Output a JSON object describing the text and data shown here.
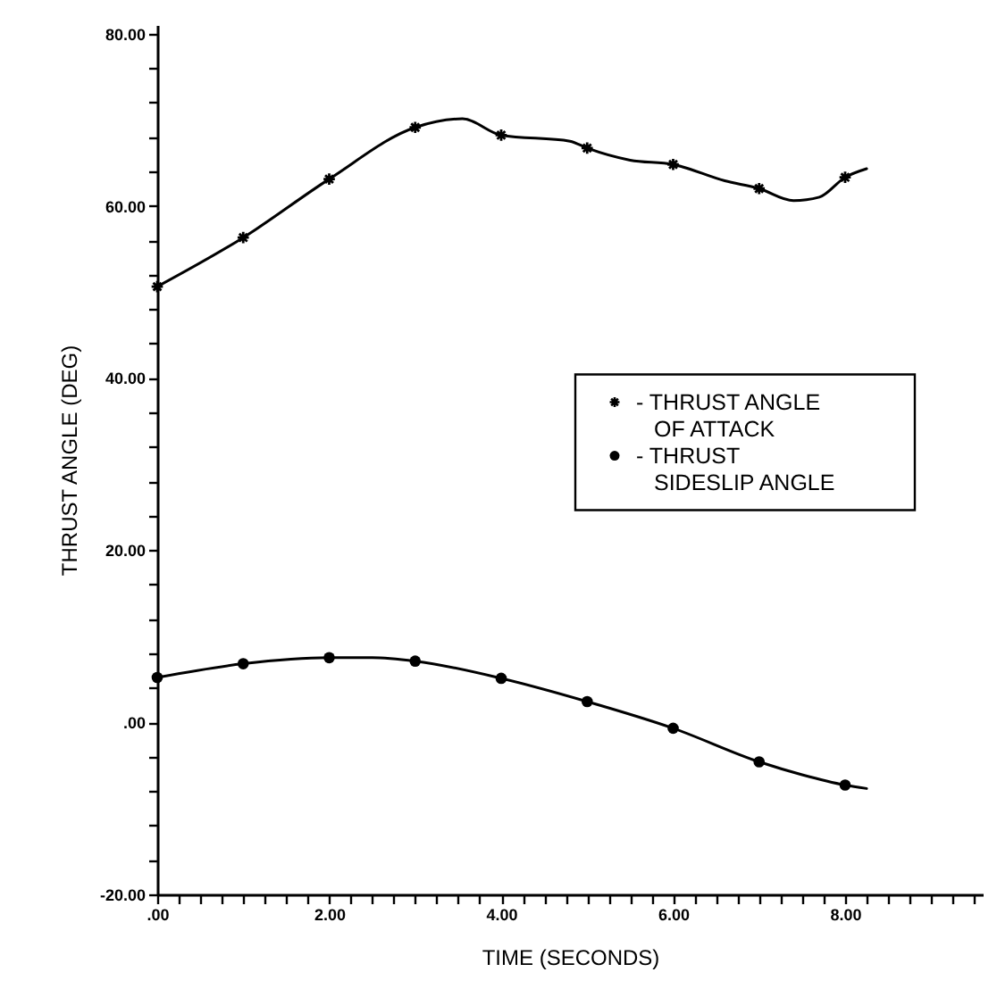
{
  "chart_data": {
    "type": "line",
    "xlabel": "TIME (SECONDS)",
    "ylabel": "THRUST ANGLE (DEG)",
    "xlim": [
      0,
      9.6
    ],
    "ylim": [
      -20,
      81
    ],
    "xticks": [
      {
        "value": 0,
        "label": ".00"
      },
      {
        "value": 0.25,
        "label": null
      },
      {
        "value": 0.5,
        "label": null
      },
      {
        "value": 0.75,
        "label": null
      },
      {
        "value": 1,
        "label": null
      },
      {
        "value": 1.25,
        "label": null
      },
      {
        "value": 1.5,
        "label": null
      },
      {
        "value": 1.75,
        "label": null
      },
      {
        "value": 2,
        "label": "2.00"
      },
      {
        "value": 2.25,
        "label": null
      },
      {
        "value": 2.5,
        "label": null
      },
      {
        "value": 2.75,
        "label": null
      },
      {
        "value": 3,
        "label": null
      },
      {
        "value": 3.25,
        "label": null
      },
      {
        "value": 3.5,
        "label": null
      },
      {
        "value": 3.75,
        "label": null
      },
      {
        "value": 4,
        "label": "4.00"
      },
      {
        "value": 4.25,
        "label": null
      },
      {
        "value": 4.5,
        "label": null
      },
      {
        "value": 4.75,
        "label": null
      },
      {
        "value": 5,
        "label": null
      },
      {
        "value": 5.25,
        "label": null
      },
      {
        "value": 5.5,
        "label": null
      },
      {
        "value": 5.75,
        "label": null
      },
      {
        "value": 6,
        "label": "6.00"
      },
      {
        "value": 6.25,
        "label": null
      },
      {
        "value": 6.5,
        "label": null
      },
      {
        "value": 6.75,
        "label": null
      },
      {
        "value": 7,
        "label": null
      },
      {
        "value": 7.25,
        "label": null
      },
      {
        "value": 7.5,
        "label": null
      },
      {
        "value": 7.75,
        "label": null
      },
      {
        "value": 8,
        "label": "8.00"
      },
      {
        "value": 8.25,
        "label": null
      },
      {
        "value": 8.5,
        "label": null
      },
      {
        "value": 8.75,
        "label": null
      },
      {
        "value": 9,
        "label": null
      },
      {
        "value": 9.25,
        "label": null
      },
      {
        "value": 9.5,
        "label": null
      }
    ],
    "yticks": [
      {
        "value": -20,
        "label": "-20.00"
      },
      {
        "value": -16,
        "label": null
      },
      {
        "value": -12,
        "label": null
      },
      {
        "value": -8,
        "label": null
      },
      {
        "value": -4,
        "label": null
      },
      {
        "value": 0,
        "label": ".00"
      },
      {
        "value": 4,
        "label": null
      },
      {
        "value": 8,
        "label": null
      },
      {
        "value": 12,
        "label": null
      },
      {
        "value": 16,
        "label": null
      },
      {
        "value": 20,
        "label": "20.00"
      },
      {
        "value": 24,
        "label": null
      },
      {
        "value": 28,
        "label": null
      },
      {
        "value": 32,
        "label": null
      },
      {
        "value": 36,
        "label": null
      },
      {
        "value": 40,
        "label": "40.00"
      },
      {
        "value": 44,
        "label": null
      },
      {
        "value": 48,
        "label": null
      },
      {
        "value": 52,
        "label": null
      },
      {
        "value": 56,
        "label": null
      },
      {
        "value": 60,
        "label": "60.00"
      },
      {
        "value": 64,
        "label": null
      },
      {
        "value": 68,
        "label": null
      },
      {
        "value": 72,
        "label": null
      },
      {
        "value": 76,
        "label": null
      },
      {
        "value": 80,
        "label": "80.00"
      }
    ],
    "grid": false,
    "legend": "right",
    "series": [
      {
        "color": "#000000",
        "marker": "none",
        "line_style": "solid",
        "x": [
          0,
          1,
          2,
          3,
          3.55,
          4,
          4.8,
          5,
          5.5,
          6,
          6.6,
          7,
          7.4,
          7.7,
          8,
          8.25
        ],
        "values": [
          50.6,
          56.3,
          63.1,
          69.1,
          70.1,
          68.2,
          67.5,
          66.7,
          65.3,
          64.8,
          62.9,
          62.0,
          60.6,
          61.0,
          63.3,
          64.3
        ]
      },
      {
        "type": "scatter",
        "name": "- THRUST ANGLE OF ATTACK",
        "color": "#000000",
        "marker": "cross",
        "x": [
          0,
          1,
          2,
          3,
          4,
          5,
          6,
          7,
          8
        ],
        "values": [
          50.6,
          56.3,
          63.1,
          69.1,
          68.2,
          66.7,
          64.8,
          62.0,
          63.3
        ]
      },
      {
        "color": "#000000",
        "marker": "none",
        "line_style": "solid",
        "x": [
          0,
          1,
          2,
          2.5,
          3,
          4,
          5,
          6,
          7,
          7.5,
          8,
          8.25
        ],
        "values": [
          5.2,
          6.8,
          7.5,
          7.5,
          7.1,
          5.1,
          2.4,
          -0.7,
          -4.6,
          -6.1,
          -7.3,
          -7.7
        ]
      },
      {
        "type": "scatter",
        "name": "- THRUST SIDESLIP ANGLE",
        "color": "#000000",
        "marker": "circle",
        "x": [
          0,
          1,
          2,
          3,
          4,
          5,
          6,
          7,
          8
        ],
        "values": [
          5.2,
          6.8,
          7.5,
          7.1,
          5.1,
          2.4,
          -0.7,
          -4.6,
          -7.3
        ]
      }
    ]
  }
}
